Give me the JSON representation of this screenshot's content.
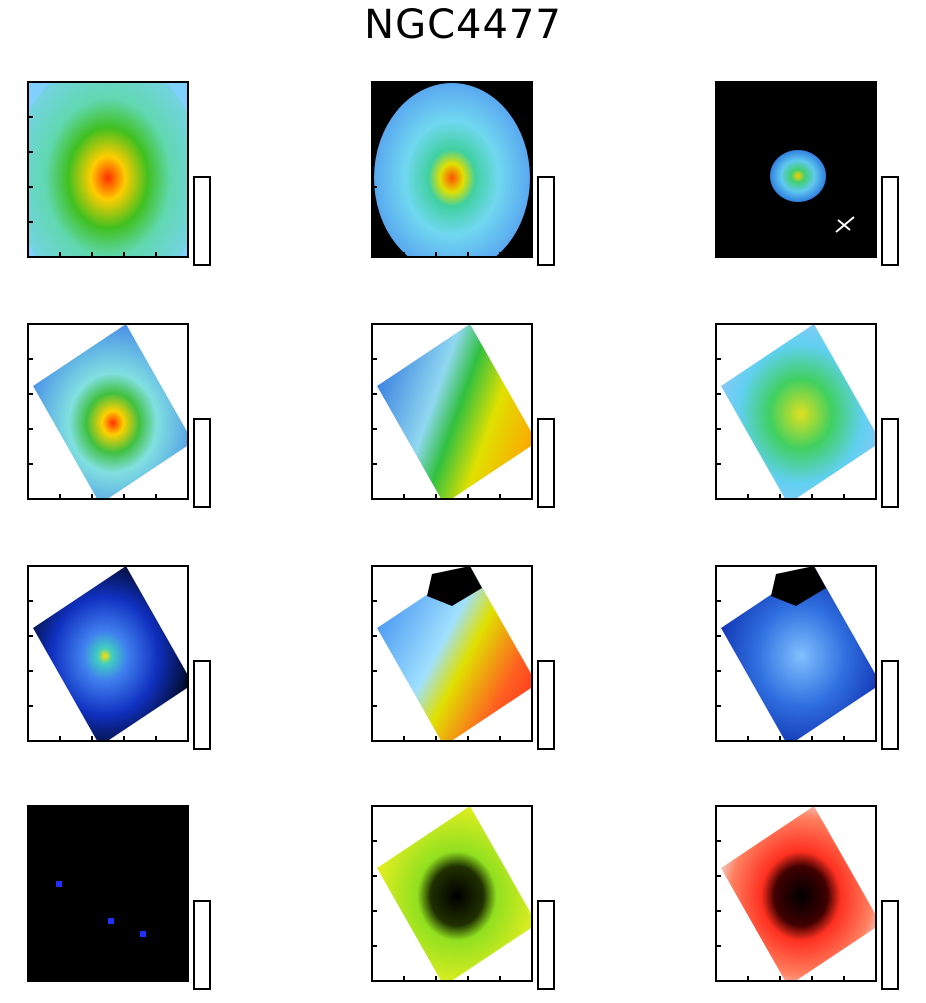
{
  "title": "NGC4477"
}
